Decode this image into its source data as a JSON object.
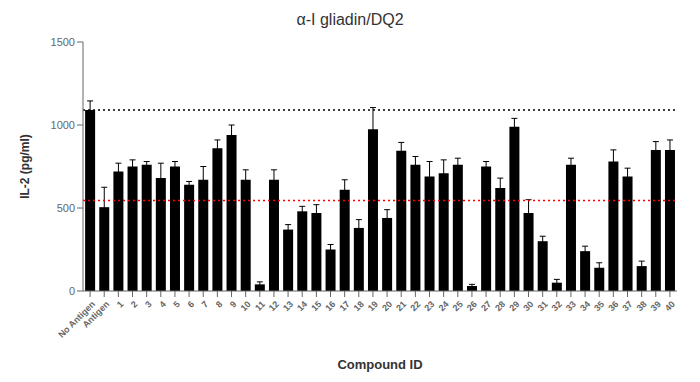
{
  "chart_data": {
    "type": "bar",
    "title": "α-I gliadin/DQ2",
    "xlabel": "Compound ID",
    "ylabel": "IL-2 (pg/ml)",
    "categories": [
      "No Antigen",
      "Antigen",
      "1",
      "2",
      "3",
      "4",
      "5",
      "6",
      "7",
      "8",
      "9",
      "10",
      "11",
      "12",
      "13",
      "14",
      "15",
      "16",
      "17",
      "18",
      "19",
      "20",
      "21",
      "22",
      "23",
      "24",
      "25",
      "26",
      "27",
      "28",
      "29",
      "30",
      "31",
      "32",
      "33",
      "34",
      "35",
      "36",
      "37",
      "38",
      "39",
      "40"
    ],
    "values": [
      1090,
      505,
      720,
      750,
      760,
      680,
      750,
      640,
      670,
      860,
      940,
      670,
      40,
      670,
      370,
      480,
      470,
      250,
      610,
      380,
      975,
      440,
      845,
      760,
      690,
      710,
      760,
      30,
      750,
      620,
      990,
      470,
      300,
      50,
      760,
      240,
      140,
      780,
      690,
      150,
      850,
      850
    ],
    "errors": [
      55,
      120,
      50,
      40,
      20,
      90,
      30,
      20,
      80,
      50,
      60,
      60,
      15,
      60,
      30,
      30,
      50,
      30,
      60,
      50,
      130,
      50,
      50,
      50,
      90,
      80,
      40,
      10,
      30,
      60,
      50,
      80,
      30,
      20,
      40,
      30,
      30,
      70,
      50,
      30,
      50,
      60
    ],
    "color": "#000000",
    "ylim": [
      0,
      1500
    ],
    "yticks": [
      0,
      500,
      1000,
      1500
    ],
    "reference_lines": [
      {
        "value": 1090,
        "color": "#000000",
        "line_style": "dotted"
      },
      {
        "value": 545,
        "color": "#ff0000",
        "line_style": "dotted"
      }
    ],
    "grid": false
  }
}
